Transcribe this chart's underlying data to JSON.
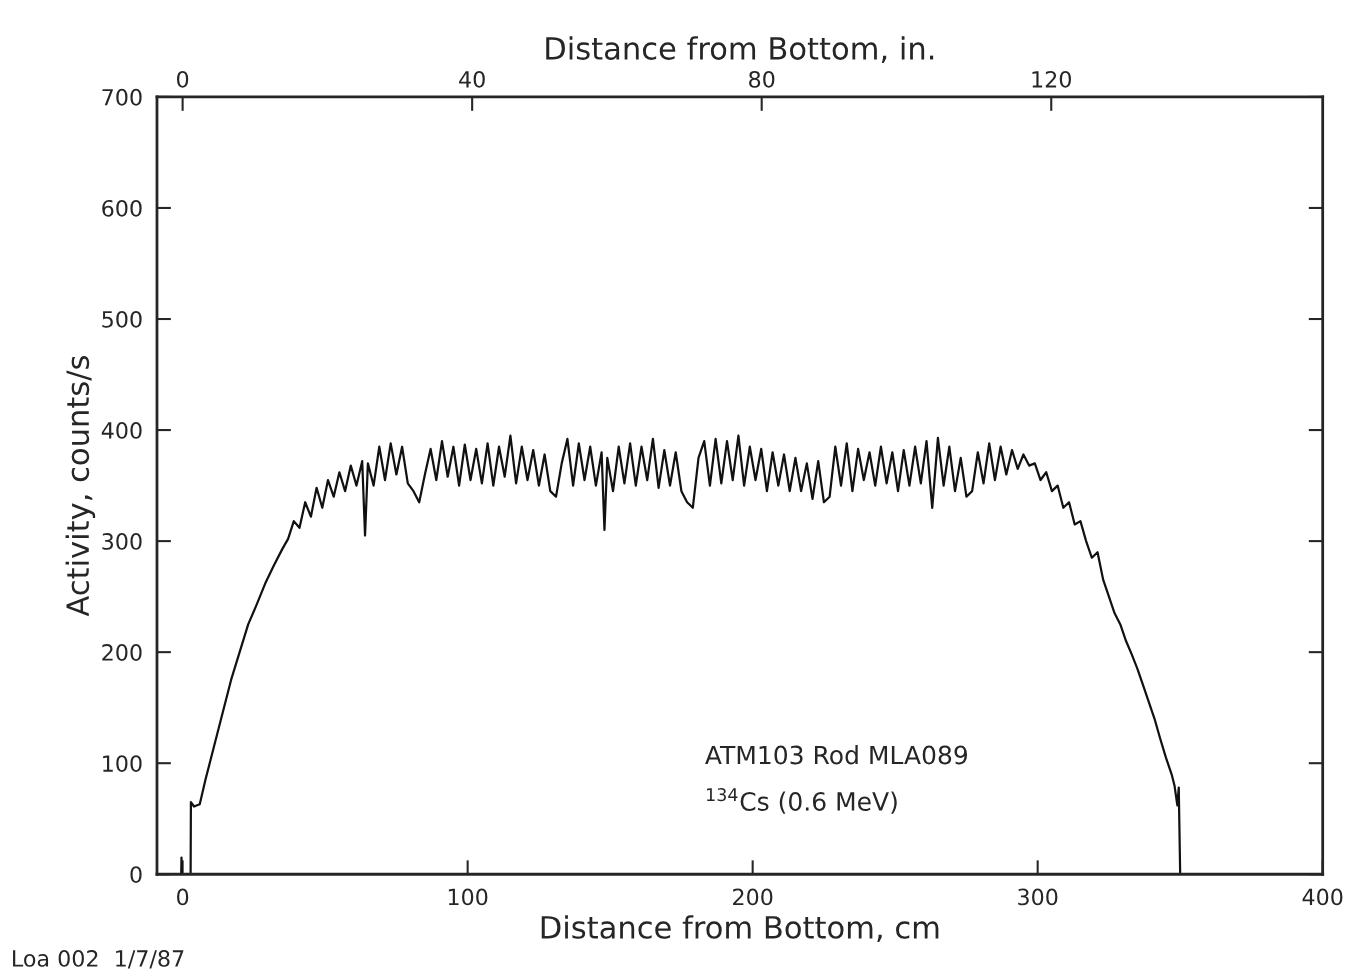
{
  "chart_data": {
    "type": "line",
    "xlabel": "Distance from Bottom, cm",
    "ylabel": "Activity, counts/s",
    "x2label": "Distance from Bottom, in.",
    "xlim": [
      -9,
      400
    ],
    "xticks": [
      0,
      100,
      200,
      300,
      400
    ],
    "x2lim": [
      -3.54,
      157.5
    ],
    "x2ticks": [
      0,
      40,
      80,
      120
    ],
    "ylim": [
      0,
      700
    ],
    "yticks": [
      0,
      100,
      200,
      300,
      400,
      500,
      600,
      700
    ],
    "grid": false,
    "legend": false,
    "annotations": [
      "ATM103 Rod MLA089",
      "$^{134}$Cs (0.6 MeV)",
      "Loa 002  1/7/87"
    ],
    "series": [
      {
        "color": "#111111",
        "x": [
          -0.5,
          -0.4,
          -0.3,
          2.8,
          2.9,
          4,
          6,
          8,
          11,
          14,
          17,
          20,
          23,
          26,
          29,
          32,
          35,
          37,
          39,
          41,
          43,
          45,
          47,
          49,
          51,
          53,
          55,
          57,
          59,
          61,
          63,
          64,
          65,
          67,
          69,
          71,
          73,
          75,
          77,
          79,
          81,
          83,
          85,
          87,
          89,
          91,
          93,
          95,
          97,
          99,
          101,
          103,
          105,
          107,
          109,
          111,
          113,
          115,
          117,
          119,
          121,
          123,
          125,
          127,
          129,
          131,
          133,
          135,
          137,
          139,
          141,
          143,
          145,
          147,
          148,
          149,
          151,
          153,
          155,
          157,
          159,
          161,
          163,
          165,
          167,
          169,
          171,
          173,
          175,
          177,
          179,
          181,
          183,
          185,
          187,
          189,
          191,
          193,
          195,
          197,
          199,
          201,
          203,
          205,
          207,
          209,
          211,
          213,
          215,
          217,
          219,
          221,
          223,
          225,
          227,
          229,
          231,
          233,
          235,
          237,
          239,
          241,
          243,
          245,
          247,
          249,
          251,
          253,
          255,
          257,
          259,
          261,
          263,
          265,
          267,
          269,
          271,
          273,
          275,
          277,
          279,
          281,
          283,
          285,
          287,
          289,
          291,
          293,
          295,
          297,
          299,
          301,
          303,
          305,
          307,
          309,
          311,
          313,
          315,
          317,
          319,
          321,
          323,
          325,
          327,
          329,
          331,
          333,
          335,
          337,
          339,
          341,
          343,
          345,
          347,
          348,
          349,
          349.5,
          350
        ],
        "values": [
          0,
          15,
          0,
          0,
          65,
          61,
          63,
          85,
          115,
          145,
          175,
          200,
          225,
          243,
          262,
          278,
          293,
          302,
          318,
          312,
          335,
          322,
          348,
          330,
          355,
          340,
          362,
          345,
          368,
          350,
          372,
          305,
          370,
          350,
          385,
          355,
          388,
          360,
          385,
          352,
          345,
          335,
          360,
          383,
          355,
          390,
          358,
          385,
          350,
          387,
          355,
          383,
          352,
          388,
          350,
          385,
          358,
          395,
          352,
          385,
          355,
          382,
          350,
          378,
          345,
          340,
          370,
          392,
          350,
          388,
          355,
          385,
          350,
          380,
          310,
          375,
          345,
          385,
          352,
          388,
          350,
          385,
          355,
          392,
          348,
          382,
          350,
          380,
          345,
          335,
          330,
          375,
          390,
          350,
          392,
          352,
          390,
          355,
          395,
          350,
          385,
          355,
          383,
          345,
          380,
          350,
          378,
          345,
          375,
          345,
          370,
          338,
          372,
          335,
          340,
          385,
          350,
          388,
          345,
          383,
          355,
          380,
          350,
          385,
          352,
          380,
          345,
          382,
          350,
          385,
          352,
          390,
          330,
          393,
          350,
          385,
          345,
          375,
          340,
          345,
          380,
          352,
          388,
          355,
          385,
          360,
          382,
          365,
          378,
          368,
          370,
          355,
          362,
          345,
          350,
          330,
          335,
          315,
          318,
          300,
          285,
          290,
          265,
          250,
          235,
          225,
          210,
          198,
          185,
          170,
          155,
          140,
          122,
          105,
          90,
          80,
          62,
          78,
          0
        ]
      }
    ]
  }
}
